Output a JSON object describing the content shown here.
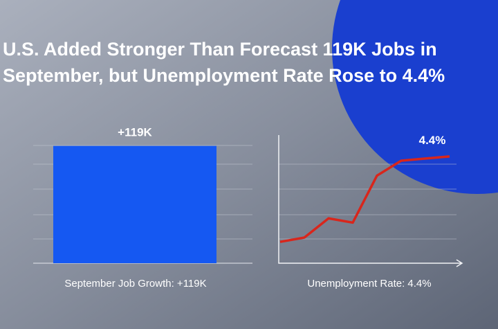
{
  "title": "U.S. Added Stronger Than Forecast 119K Jobs in September, but Unemployment Rate Rose to 4.4%",
  "chart_data": [
    {
      "type": "bar",
      "categories": [
        null
      ],
      "values": [
        119
      ],
      "value_labels": [
        "+119K"
      ],
      "color": "#1558f2",
      "ylim": [
        0,
        130
      ],
      "caption": "September Job Growth: +119K"
    },
    {
      "type": "line",
      "categories": [
        null,
        null,
        null,
        null,
        null,
        null,
        null,
        null
      ],
      "series": [
        {
          "color": "#d8261c",
          "values": [
            4.0,
            4.02,
            4.11,
            4.09,
            4.31,
            4.38,
            4.39,
            4.4
          ],
          "value_labels": [
            null,
            null,
            null,
            null,
            null,
            null,
            null,
            "4.4%"
          ]
        }
      ],
      "ylim": [
        3.9,
        4.5
      ],
      "caption": "Unemployment Rate: 4.4%"
    }
  ]
}
